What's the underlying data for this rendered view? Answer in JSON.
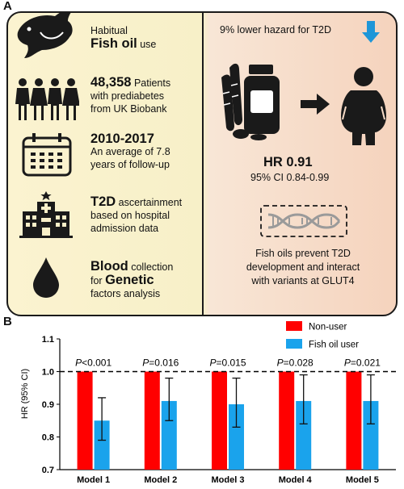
{
  "panel_a": {
    "letter": "A",
    "rows": [
      {
        "line1": "Habitual",
        "strong": "Fish oil",
        "rest": " use"
      },
      {
        "num": "48,358",
        "after": " Patients",
        "line2": "with prediabetes",
        "line3": "from UK Biobank"
      },
      {
        "num": "2010-2017",
        "line2": "An average of 7.8",
        "line3": "years of follow-up"
      },
      {
        "strong": "T2D",
        "rest": " ascertainment",
        "line2": "based on hospital",
        "line3": "admission data"
      },
      {
        "strong": "Blood",
        "rest": " collection",
        "line2_prefix": "for ",
        "line2_strong": "Genetic",
        "line3": "factors analysis"
      }
    ],
    "right": {
      "hazard_text": "9% lower hazard for T2D",
      "hr_text": "HR 0.91",
      "ci_text": "95% CI 0.84-0.99",
      "conclusion_line1": "Fish oils prevent T2D",
      "conclusion_line2": "development and interact",
      "conclusion_line3": "with variants at GLUT4"
    },
    "colors": {
      "arrow_down": "#1e96d8"
    }
  },
  "panel_b": {
    "letter": "B"
  },
  "chart_data": {
    "type": "bar",
    "categories": [
      "Model 1",
      "Model 2",
      "Model 3",
      "Model 4",
      "Model 5"
    ],
    "series": [
      {
        "name": "Non-user",
        "color": "#ff0000",
        "values": [
          1.0,
          1.0,
          1.0,
          1.0,
          1.0
        ]
      },
      {
        "name": "Fish oil user",
        "color": "#1aa3ec",
        "values": [
          0.85,
          0.91,
          0.9,
          0.91,
          0.91
        ],
        "ci_low": [
          0.79,
          0.85,
          0.83,
          0.84,
          0.84
        ],
        "ci_high": [
          0.92,
          0.98,
          0.98,
          0.99,
          0.99
        ]
      }
    ],
    "p_prefix": "P",
    "p_values": [
      "<0.001",
      "=0.016",
      "=0.015",
      "=0.028",
      "=0.021"
    ],
    "ylabel": "HR (95% CI)",
    "ylim": [
      0.7,
      1.1
    ],
    "yticks": [
      "0.7",
      "0.8",
      "0.9",
      "1.0",
      "1.1"
    ],
    "reference_line": 1.0,
    "legend_position": "top-right"
  }
}
